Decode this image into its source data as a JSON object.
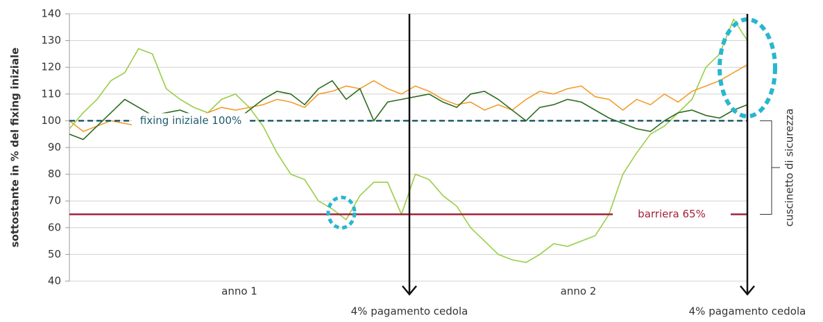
{
  "chart_data": {
    "type": "line",
    "y_label": "sottostante in % del fixing iniziale",
    "x_labels": [
      "anno 1",
      "anno 2"
    ],
    "event_label": "4% pagamento cedola",
    "cushion_label": "cuscinetto di sicurezza",
    "ylim": [
      40,
      140
    ],
    "yticks": [
      40,
      50,
      60,
      70,
      80,
      90,
      100,
      110,
      120,
      130,
      140
    ],
    "grid": true,
    "reference_lines": [
      {
        "value": 100,
        "label": "fixing iniziale 100%",
        "color": "#1e5a6b",
        "dashed": true
      },
      {
        "value": 65,
        "label": "barriera 65%",
        "color": "#a0213a",
        "dashed": false
      }
    ],
    "series": [
      {
        "color": "#9acd45",
        "values": [
          97,
          103,
          108,
          115,
          118,
          127,
          125,
          112,
          108,
          105,
          103,
          108,
          110,
          105,
          98,
          88,
          80,
          78,
          70,
          67,
          63,
          72,
          77,
          77,
          65,
          80,
          78,
          72,
          68,
          60,
          55,
          50,
          48,
          47,
          50,
          54,
          53,
          55,
          57,
          65,
          80,
          88,
          95,
          98,
          103,
          108,
          120,
          125,
          138,
          130
        ]
      },
      {
        "color": "#f39c2b",
        "values": [
          100,
          96,
          98,
          100,
          99,
          98,
          100,
          101,
          100,
          101,
          103,
          105,
          104,
          105,
          106,
          108,
          107,
          105,
          110,
          111,
          113,
          112,
          115,
          112,
          110,
          113,
          111,
          108,
          106,
          107,
          104,
          106,
          104,
          108,
          111,
          110,
          112,
          113,
          109,
          108,
          104,
          108,
          106,
          110,
          107,
          111,
          113,
          115,
          118,
          121
        ]
      },
      {
        "color": "#2e6b1f",
        "values": [
          95,
          93,
          98,
          103,
          108,
          105,
          102,
          103,
          104,
          102,
          101,
          102,
          100,
          104,
          108,
          111,
          110,
          106,
          112,
          115,
          108,
          112,
          100,
          107,
          108,
          109,
          110,
          107,
          105,
          110,
          111,
          108,
          104,
          100,
          105,
          106,
          108,
          107,
          104,
          101,
          99,
          97,
          96,
          100,
          103,
          104,
          102,
          101,
          104,
          106
        ]
      }
    ]
  }
}
